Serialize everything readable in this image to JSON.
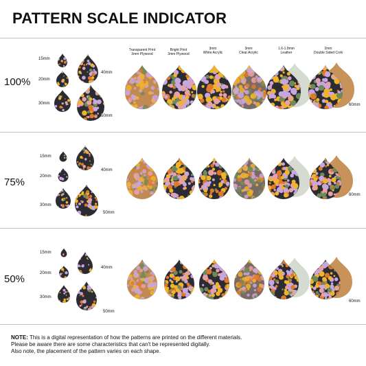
{
  "title": "PATTERN SCALE INDICATOR",
  "scales": [
    "100%",
    "75%",
    "50%"
  ],
  "sizes": [
    "15mm",
    "20mm",
    "30mm",
    "40mm",
    "50mm"
  ],
  "size_label_60": "60mm",
  "materials": [
    {
      "line1": "Transparent Print",
      "line2": "3mm Plywood"
    },
    {
      "line1": "Bright Print",
      "line2": "3mm Plywood"
    },
    {
      "line1": "3mm",
      "line2": "White Acrylic"
    },
    {
      "line1": "3mm",
      "line2": "Clear Acrylic"
    },
    {
      "line1": "1.6-1.8mm",
      "line2": "Leather"
    },
    {
      "line1": "2mm",
      "line2": "Double Sided Cork"
    }
  ],
  "note": {
    "label": "NOTE:",
    "line1": " This is a digital representation of how the patterns are printed on the different materials.",
    "line2": "Please be aware there are some characteristics that can't be represented digitally.",
    "line3": "Also note, the placement of the pattern varies on each shape."
  },
  "colors": {
    "floral_dark": "#2b2b33",
    "lilac": "#c9a6e0",
    "yellow": "#f0b428",
    "orange": "#e07a2a",
    "pink": "#e8a0a8",
    "leaf": "#6f8a5a",
    "wood": "#c08a52",
    "cork": "#c8935a",
    "leather": "#d6dbd2"
  }
}
